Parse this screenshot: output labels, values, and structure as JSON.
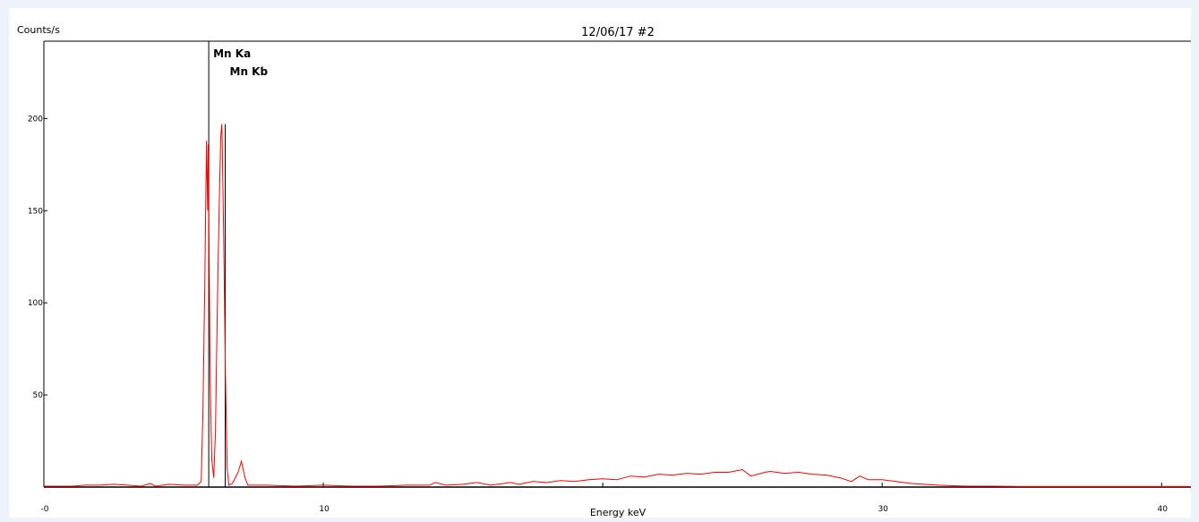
{
  "chart_data": {
    "type": "line",
    "title": "12/06/17 #2",
    "xlabel": "Energy keV",
    "ylabel": "Counts/s",
    "xlim": [
      0,
      41.05
    ],
    "ylim": [
      0,
      242
    ],
    "x_ticks": [
      0,
      10,
      20,
      30,
      40
    ],
    "x_tick_labels": [
      "-0",
      "10",
      "",
      "30",
      "40"
    ],
    "y_ticks": [
      50,
      100,
      150,
      200
    ],
    "y_tick_labels": [
      "50",
      "100",
      "150",
      "200"
    ],
    "grid": false,
    "series_color": "#ff0000",
    "markers": [
      {
        "label": "Mn Ka",
        "energy": 5.9,
        "height": 242
      },
      {
        "label": "Mn Kb",
        "energy": 6.49,
        "height": 197
      }
    ],
    "points": [
      [
        0,
        0.5
      ],
      [
        0.5,
        0.5
      ],
      [
        1,
        0.5
      ],
      [
        1.5,
        1
      ],
      [
        2,
        1
      ],
      [
        2.5,
        1.5
      ],
      [
        3,
        1
      ],
      [
        3.5,
        0.5
      ],
      [
        3.8,
        2
      ],
      [
        4,
        0.5
      ],
      [
        4.5,
        1.5
      ],
      [
        5,
        1
      ],
      [
        5.5,
        1
      ],
      [
        5.63,
        3
      ],
      [
        5.69,
        40
      ],
      [
        5.76,
        110
      ],
      [
        5.82,
        188
      ],
      [
        5.86,
        150
      ],
      [
        5.88,
        186
      ],
      [
        5.95,
        60
      ],
      [
        6.01,
        15
      ],
      [
        6.08,
        5
      ],
      [
        6.14,
        30
      ],
      [
        6.21,
        100
      ],
      [
        6.27,
        150
      ],
      [
        6.33,
        190
      ],
      [
        6.37,
        197
      ],
      [
        6.43,
        140
      ],
      [
        6.5,
        60
      ],
      [
        6.56,
        10
      ],
      [
        6.62,
        1
      ],
      [
        6.75,
        2
      ],
      [
        6.95,
        8
      ],
      [
        7.07,
        14
      ],
      [
        7.2,
        5
      ],
      [
        7.3,
        1
      ],
      [
        8,
        1
      ],
      [
        9,
        0.5
      ],
      [
        10,
        1
      ],
      [
        11,
        0.5
      ],
      [
        12,
        0.5
      ],
      [
        13,
        1
      ],
      [
        13.8,
        1
      ],
      [
        14,
        2.5
      ],
      [
        14.4,
        1
      ],
      [
        15,
        1.5
      ],
      [
        15.5,
        2.5
      ],
      [
        16,
        1
      ],
      [
        16.7,
        2.5
      ],
      [
        17,
        1.5
      ],
      [
        17.5,
        3
      ],
      [
        18,
        2.5
      ],
      [
        18.5,
        3.5
      ],
      [
        19,
        3
      ],
      [
        19.5,
        4
      ],
      [
        20,
        4.5
      ],
      [
        20.5,
        4
      ],
      [
        21,
        6
      ],
      [
        21.5,
        5.5
      ],
      [
        22,
        7
      ],
      [
        22.5,
        6.5
      ],
      [
        23,
        7.5
      ],
      [
        23.5,
        7
      ],
      [
        24,
        8
      ],
      [
        24.5,
        8
      ],
      [
        25,
        9.5
      ],
      [
        25.3,
        6
      ],
      [
        25.8,
        8
      ],
      [
        26,
        8.5
      ],
      [
        26.5,
        7.5
      ],
      [
        27,
        8
      ],
      [
        27.5,
        7
      ],
      [
        28,
        6.5
      ],
      [
        28.5,
        5
      ],
      [
        28.9,
        3
      ],
      [
        29.2,
        6
      ],
      [
        29.5,
        4
      ],
      [
        30,
        4
      ],
      [
        30.5,
        3
      ],
      [
        31,
        2
      ],
      [
        31.5,
        1.5
      ],
      [
        32,
        1
      ],
      [
        33,
        0.5
      ],
      [
        34,
        0.5
      ],
      [
        35,
        0.3
      ],
      [
        36,
        0.3
      ],
      [
        37,
        0.3
      ],
      [
        38,
        0.3
      ],
      [
        39,
        0.3
      ],
      [
        40,
        0.3
      ],
      [
        41,
        0.3
      ]
    ]
  }
}
